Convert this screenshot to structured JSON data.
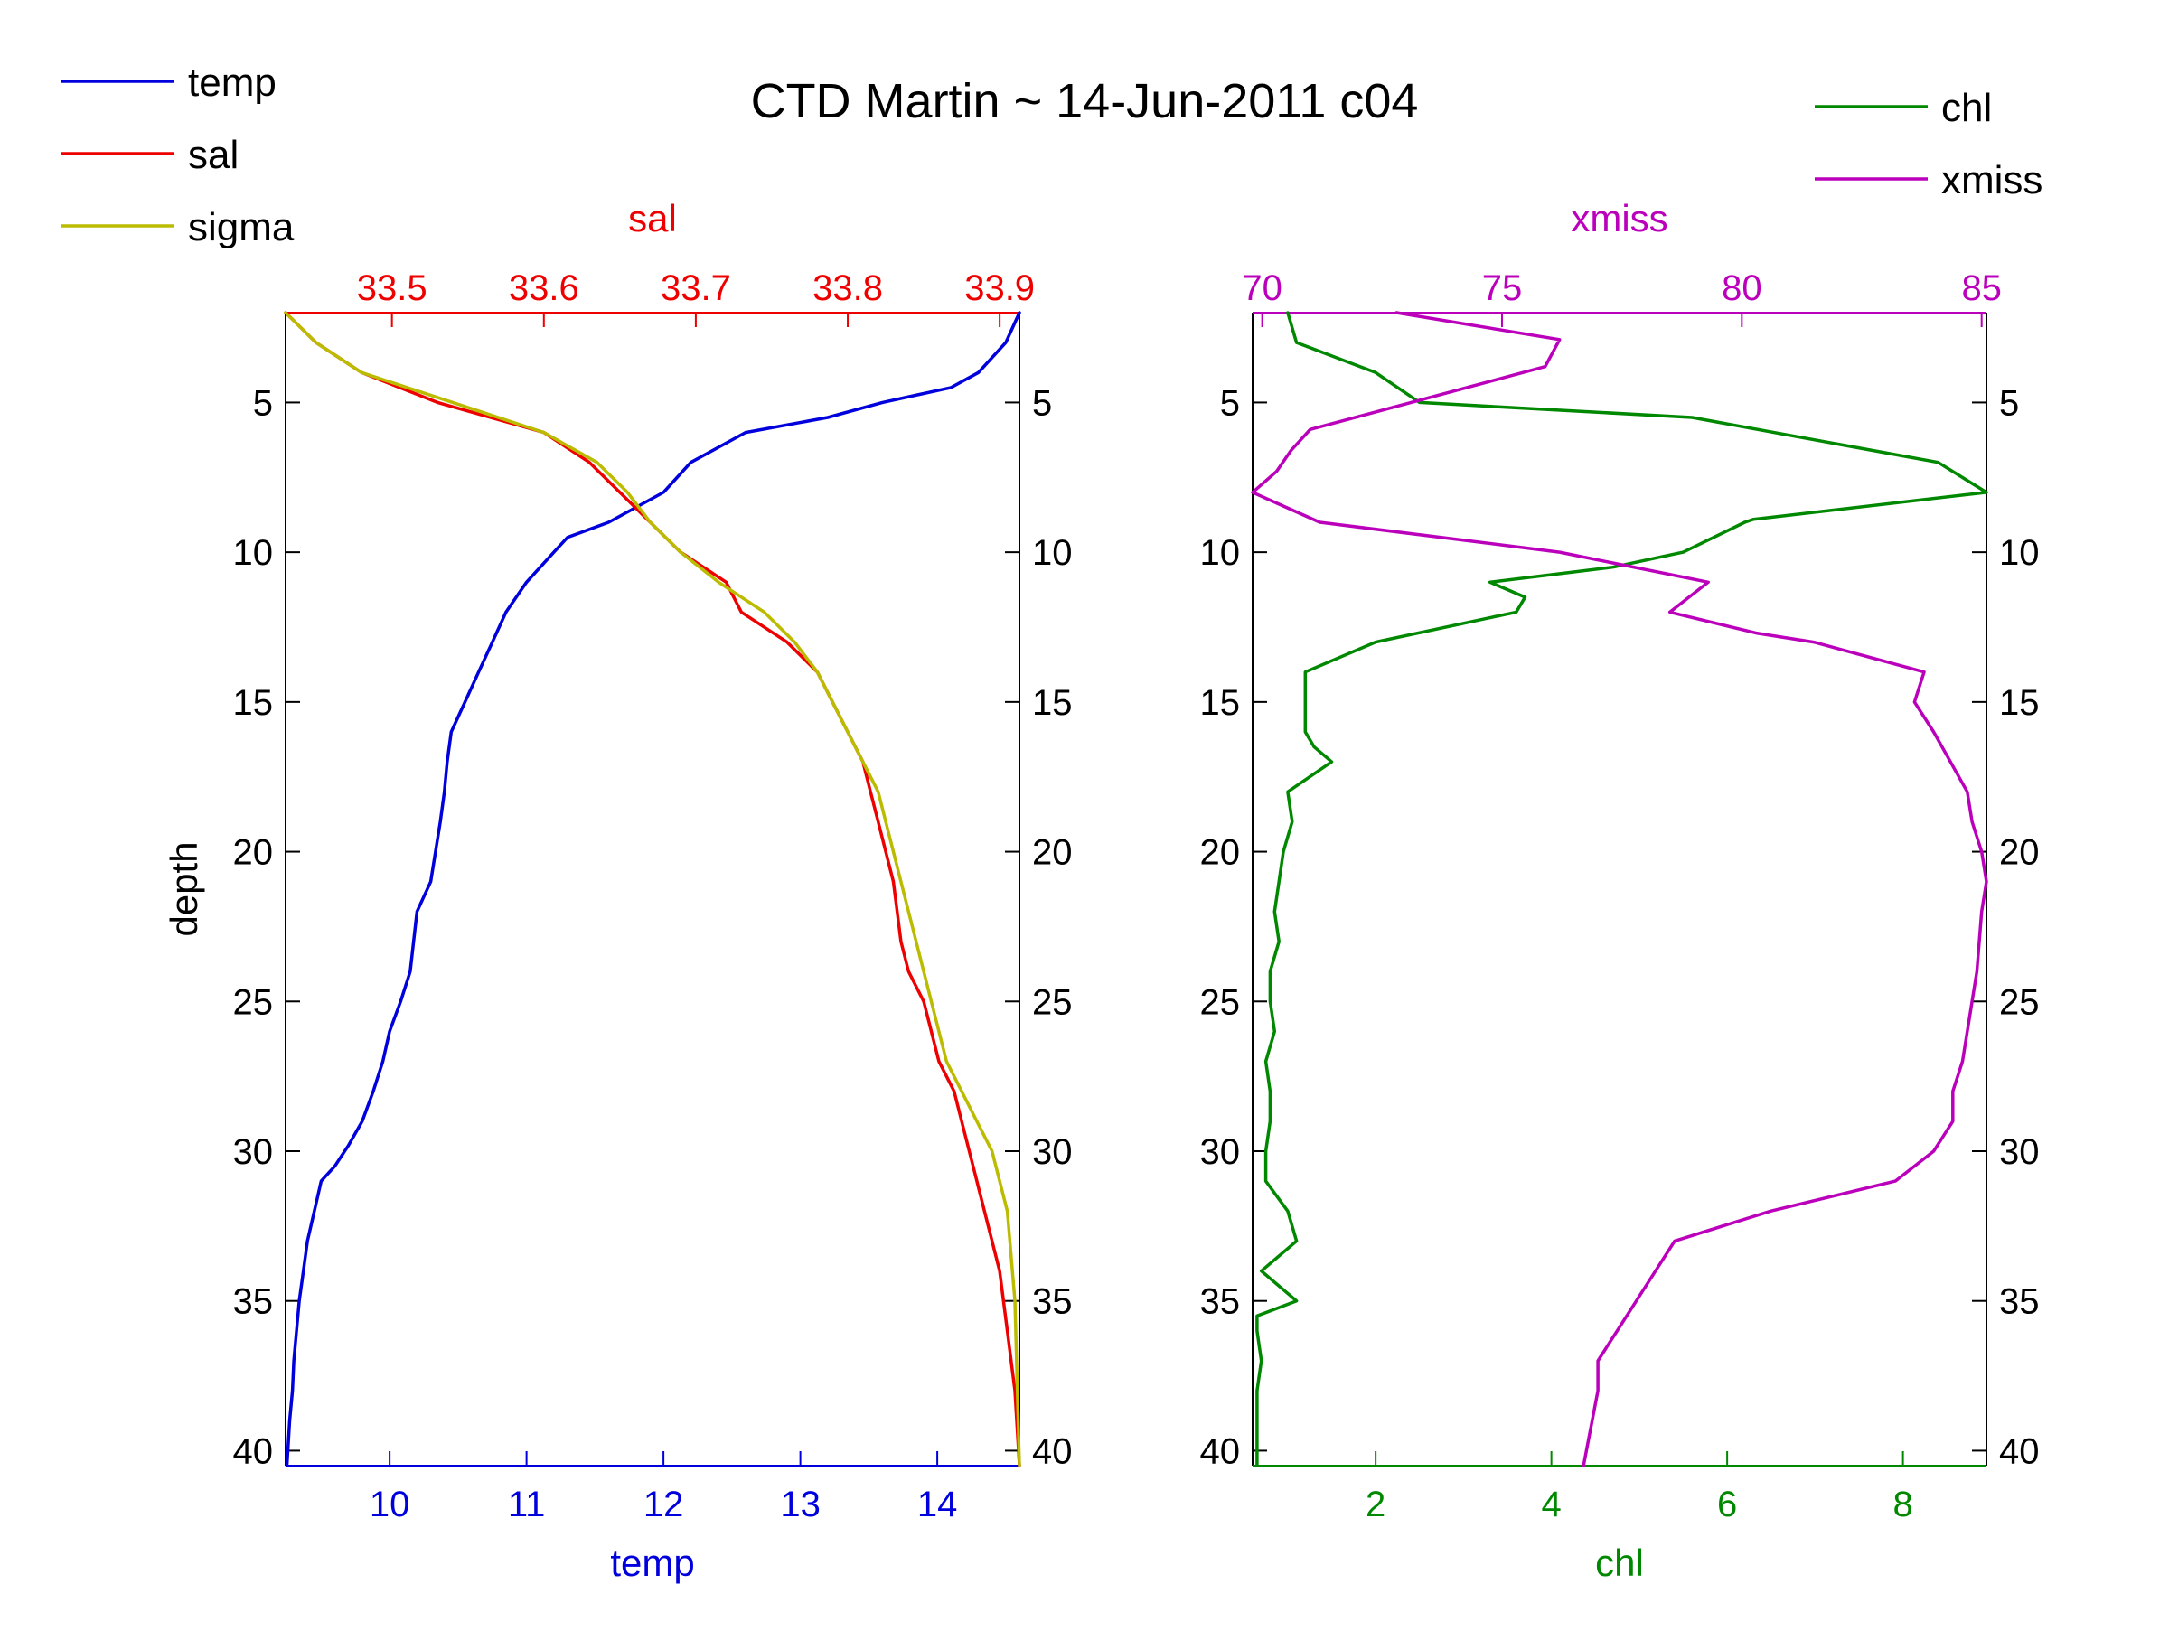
{
  "title": "CTD Martin ~ 14-Jun-2011 c04",
  "colors": {
    "temp": "#0000dd",
    "sal": "#ee0000",
    "sigma": "#bbbb00",
    "chl": "#008800",
    "xmiss": "#bb00bb",
    "axis": "#000000"
  },
  "legend_left": [
    {
      "label": "temp",
      "color": "#0000dd"
    },
    {
      "label": "sal",
      "color": "#ee0000"
    },
    {
      "label": "sigma",
      "color": "#bbbb00"
    }
  ],
  "legend_right": [
    {
      "label": "chl",
      "color": "#008800"
    },
    {
      "label": "xmiss",
      "color": "#bb00bb"
    }
  ],
  "chart_data": [
    {
      "type": "line",
      "panel": "left",
      "ylabel": "depth",
      "ylim": [
        2,
        40.5
      ],
      "y_reversed": true,
      "yticks": [
        5,
        10,
        15,
        20,
        25,
        30,
        35,
        40
      ],
      "bottom_axis": {
        "label": "temp",
        "lim": [
          9.24,
          14.6
        ],
        "ticks": [
          10,
          11,
          12,
          13,
          14
        ]
      },
      "top_axis": {
        "label": "sal",
        "lim": [
          33.43,
          33.913
        ],
        "ticks": [
          33.5,
          33.6,
          33.7,
          33.8,
          33.9
        ],
        "tick_labels": [
          "33.5",
          "33.6",
          "33.7",
          "33.8",
          "33.9"
        ]
      },
      "series": [
        {
          "name": "temp",
          "axis": "bottom",
          "x": [
            14.6,
            14.5,
            14.3,
            14.1,
            13.6,
            13.2,
            12.6,
            12.2,
            12.0,
            11.6,
            11.3,
            11.2,
            11.0,
            10.85,
            10.75,
            10.65,
            10.55,
            10.45,
            10.42,
            10.4,
            10.37,
            10.3,
            10.2,
            10.15,
            10.08,
            10.0,
            9.95,
            9.88,
            9.8,
            9.7,
            9.6,
            9.5,
            9.45,
            9.4,
            9.37,
            9.34,
            9.32,
            9.3,
            9.29,
            9.27,
            9.25
          ],
          "y": [
            2,
            3,
            4,
            4.5,
            5,
            5.5,
            6,
            7,
            8,
            9,
            9.5,
            10,
            11,
            12,
            13,
            14,
            15,
            16,
            17,
            18,
            19,
            21,
            22,
            24,
            25,
            26,
            27,
            28,
            29,
            29.8,
            30.5,
            31,
            32,
            33,
            34,
            35,
            36,
            37,
            38,
            39,
            40.5
          ]
        },
        {
          "name": "sal",
          "axis": "top",
          "x": [
            33.43,
            33.45,
            33.48,
            33.53,
            33.6,
            33.63,
            33.65,
            33.67,
            33.69,
            33.72,
            33.73,
            33.76,
            33.78,
            33.79,
            33.8,
            33.81,
            33.815,
            33.82,
            33.825,
            33.83,
            33.835,
            33.84,
            33.85,
            33.86,
            33.87,
            33.875,
            33.88,
            33.885,
            33.89,
            33.9,
            33.905,
            33.91,
            33.913
          ],
          "y": [
            2,
            3,
            4,
            5,
            6,
            7,
            8,
            9,
            10,
            11,
            12,
            13,
            14,
            15,
            16,
            17,
            18,
            19,
            20,
            21,
            23,
            24,
            25,
            27,
            28,
            29,
            30,
            31,
            32,
            34,
            36,
            38,
            40.5
          ]
        },
        {
          "name": "sigma",
          "axis": "top",
          "x": [
            33.43,
            33.45,
            33.48,
            33.54,
            33.6,
            33.635,
            33.655,
            33.67,
            33.69,
            33.715,
            33.745,
            33.765,
            33.78,
            33.79,
            33.8,
            33.81,
            33.82,
            33.825,
            33.83,
            33.835,
            33.845,
            33.855,
            33.865,
            33.875,
            33.885,
            33.895,
            33.9,
            33.905,
            33.91,
            33.913
          ],
          "y": [
            2,
            3,
            4,
            5,
            6,
            7,
            8,
            9,
            10,
            11,
            12,
            13,
            14,
            15,
            16,
            17,
            18,
            19,
            20,
            21,
            23,
            25,
            27,
            28,
            29,
            30,
            31,
            32,
            35,
            40.5
          ]
        }
      ]
    },
    {
      "type": "line",
      "panel": "right",
      "ylabel": "",
      "ylim": [
        2,
        40.5
      ],
      "y_reversed": true,
      "yticks": [
        5,
        10,
        15,
        20,
        25,
        30,
        35,
        40
      ],
      "bottom_axis": {
        "label": "chl",
        "lim": [
          0.6,
          8.95
        ],
        "ticks": [
          2,
          4,
          6,
          8
        ]
      },
      "top_axis": {
        "label": "xmiss",
        "lim": [
          69.8,
          85.1
        ],
        "ticks": [
          70,
          75,
          80,
          85
        ]
      },
      "series": [
        {
          "name": "chl",
          "axis": "bottom",
          "x": [
            1.0,
            1.1,
            2.0,
            2.5,
            5.6,
            8.4,
            8.95,
            6.3,
            6.2,
            5.5,
            4.7,
            3.3,
            3.7,
            3.6,
            2.0,
            1.2,
            1.2,
            1.2,
            1.3,
            1.5,
            1.0,
            1.05,
            0.95,
            0.9,
            0.85,
            0.9,
            0.8,
            0.8,
            0.85,
            0.75,
            0.8,
            0.8,
            0.75,
            0.75,
            1.0,
            1.1,
            0.7,
            1.1,
            0.65,
            0.65,
            0.7,
            0.65,
            0.65,
            0.65
          ],
          "y": [
            2,
            3,
            4,
            5,
            5.5,
            7,
            8,
            8.9,
            9,
            10,
            10.5,
            11,
            11.5,
            12,
            13,
            14,
            15,
            16,
            16.5,
            17,
            18,
            19,
            20,
            21,
            22,
            23,
            24,
            25,
            26,
            27,
            28,
            29,
            30,
            31,
            32,
            33,
            34,
            35,
            35.5,
            36,
            37,
            38,
            39,
            40.5
          ]
        },
        {
          "name": "xmiss",
          "axis": "top",
          "x": [
            72.8,
            76.2,
            75.9,
            71.0,
            70.6,
            70.3,
            69.8,
            71.2,
            76.2,
            79.3,
            78.5,
            80.3,
            81.5,
            83.8,
            83.6,
            84.0,
            84.7,
            84.8,
            85.0,
            85.1,
            85.0,
            84.9,
            84.8,
            84.6,
            84.4,
            84.4,
            84.0,
            83.2,
            80.6,
            78.6,
            78.2,
            77.8,
            77.4,
            77.0,
            77.0,
            76.7
          ],
          "y": [
            2,
            2.9,
            3.8,
            5.9,
            6.6,
            7.3,
            8,
            9,
            10,
            11,
            12,
            12.7,
            13,
            14,
            15,
            16,
            18,
            19,
            20,
            21,
            22,
            24,
            25,
            27,
            28,
            29,
            30,
            31,
            32,
            33,
            34,
            35,
            36,
            37,
            38,
            40.5
          ]
        }
      ]
    }
  ]
}
